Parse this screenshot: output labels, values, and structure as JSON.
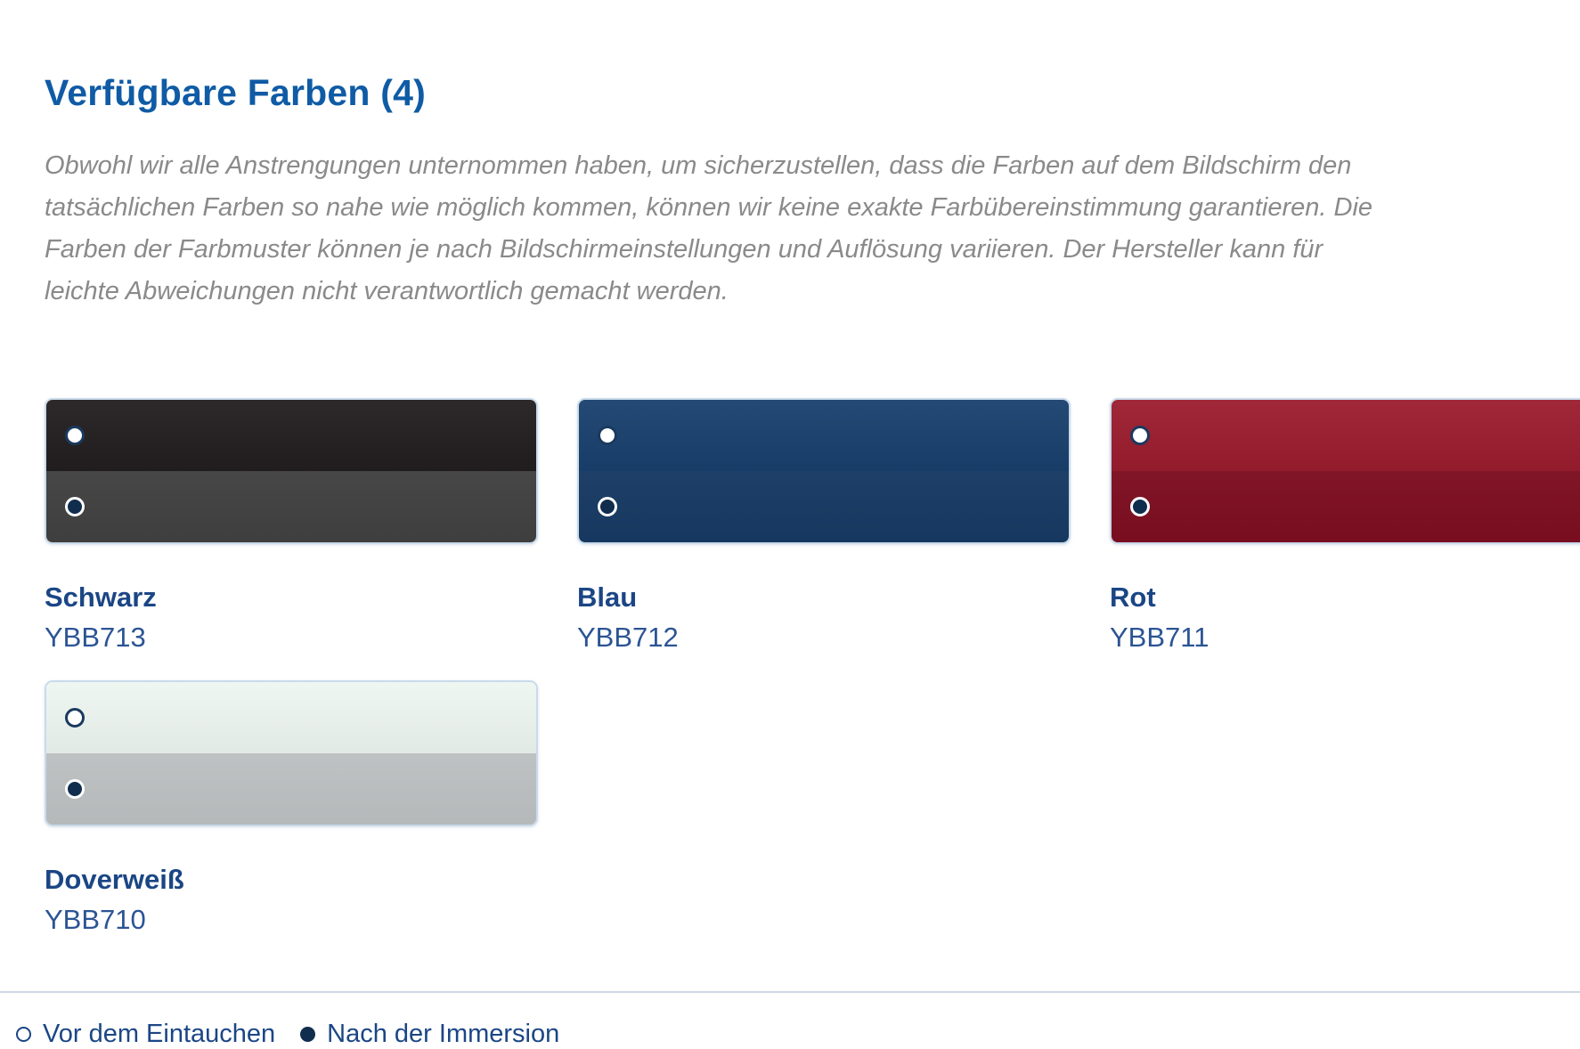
{
  "header": {
    "title": "Verfügbare Farben (4)"
  },
  "disclaimer": "Obwohl wir alle Anstrengungen unternommen haben, um sicherzustellen, dass die Farben auf dem Bildschirm den tatsächlichen Farben so nahe wie möglich kommen, können wir keine exakte Farbübereinstimmung garantieren. Die Farben der Farbmuster können je nach Bildschirmeinstellungen und Auflösung variieren. Der Hersteller kann für leichte Abweichungen nicht verantwortlich gemacht werden.",
  "swatches": [
    {
      "name": "Schwarz",
      "code": "YBB713",
      "before_color": "#221e1f",
      "after_color": "#414141"
    },
    {
      "name": "Blau",
      "code": "YBB712",
      "before_color": "#18406d",
      "after_color": "#173a63"
    },
    {
      "name": "Rot",
      "code": "YBB711",
      "before_color": "#9a1c2e",
      "after_color": "#7d0e21"
    },
    {
      "name": "Doverweiß",
      "code": "YBB710",
      "before_color": "#eef6f1",
      "after_color": "#bcc0c1"
    }
  ],
  "legend": {
    "before": "Vor dem Eintauchen",
    "after": "Nach der Immersion"
  },
  "theme": {
    "title_color": "#0f5ba5",
    "label_color": "#1b4685",
    "code_color": "#2b5494",
    "paragraph_color": "#8a8a8a",
    "swatch_border": "#c9dbeb",
    "divider": "#ccd8e5",
    "radio_ring": "#1a3a5f",
    "radio_fill": "#102d4e"
  }
}
